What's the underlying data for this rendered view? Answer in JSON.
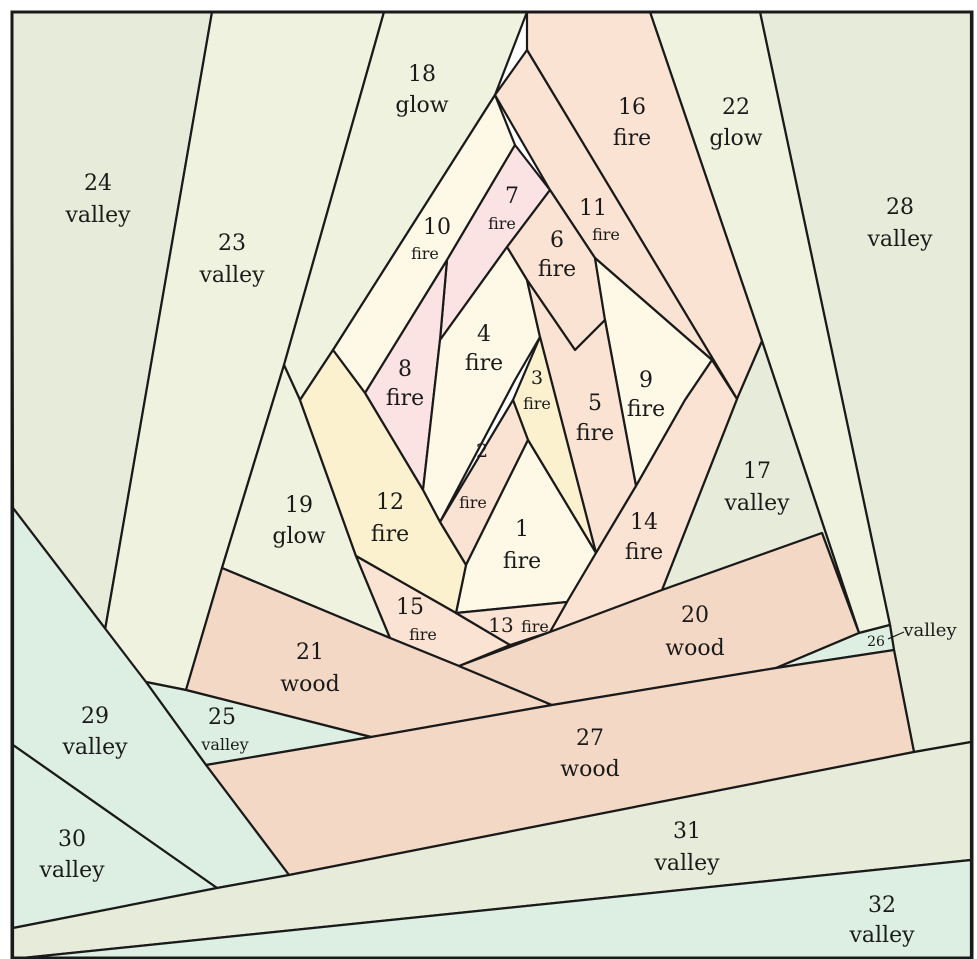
{
  "colors": {
    "valley": "#e6ecd9",
    "valley_mint": "#ddeee2",
    "glow": "#eef2de",
    "wood": "#f4d8c6",
    "fire_cream": "#fdf9e6",
    "fire_yellow": "#fbf1cf",
    "fire_peach": "#fbe3d3",
    "fire_pink": "#fbe3e3"
  },
  "pieces": [
    {
      "id": "1",
      "num": "1",
      "word": "fire"
    },
    {
      "id": "2",
      "num": "2",
      "word": "fire"
    },
    {
      "id": "3",
      "num": "3",
      "word": "fire"
    },
    {
      "id": "4",
      "num": "4",
      "word": "fire"
    },
    {
      "id": "5",
      "num": "5",
      "word": "fire"
    },
    {
      "id": "6",
      "num": "6",
      "word": "fire"
    },
    {
      "id": "7",
      "num": "7",
      "word": "fire"
    },
    {
      "id": "8",
      "num": "8",
      "word": "fire"
    },
    {
      "id": "9",
      "num": "9",
      "word": "fire"
    },
    {
      "id": "10",
      "num": "10",
      "word": "fire"
    },
    {
      "id": "11",
      "num": "11",
      "word": "fire"
    },
    {
      "id": "12",
      "num": "12",
      "word": "fire"
    },
    {
      "id": "13",
      "num": "13",
      "word": "fire"
    },
    {
      "id": "14",
      "num": "14",
      "word": "fire"
    },
    {
      "id": "15",
      "num": "15",
      "word": "fire"
    },
    {
      "id": "16",
      "num": "16",
      "word": "fire"
    },
    {
      "id": "17",
      "num": "17",
      "word": "valley"
    },
    {
      "id": "18",
      "num": "18",
      "word": "glow"
    },
    {
      "id": "19",
      "num": "19",
      "word": "glow"
    },
    {
      "id": "20",
      "num": "20",
      "word": "wood"
    },
    {
      "id": "21",
      "num": "21",
      "word": "wood"
    },
    {
      "id": "22",
      "num": "22",
      "word": "glow"
    },
    {
      "id": "23",
      "num": "23",
      "word": "valley"
    },
    {
      "id": "24",
      "num": "24",
      "word": "valley"
    },
    {
      "id": "25",
      "num": "25",
      "word": "valley"
    },
    {
      "id": "26",
      "num": "26",
      "word": "valley"
    },
    {
      "id": "27",
      "num": "27",
      "word": "wood"
    },
    {
      "id": "28",
      "num": "28",
      "word": "valley"
    },
    {
      "id": "29",
      "num": "29",
      "word": "valley"
    },
    {
      "id": "30",
      "num": "30",
      "word": "valley"
    },
    {
      "id": "31",
      "num": "31",
      "word": "valley"
    },
    {
      "id": "32",
      "num": "32",
      "word": "valley"
    }
  ]
}
